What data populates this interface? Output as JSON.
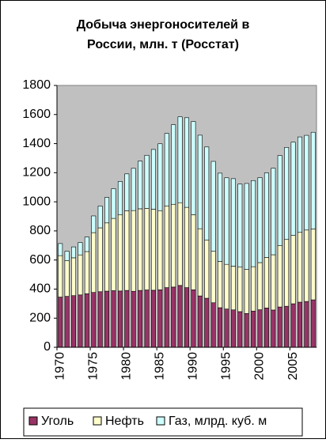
{
  "chart_data": {
    "type": "stacked_bar",
    "title": [
      "Добыча энергоносителей в",
      "России, млн. т (Росстат)"
    ],
    "categories": [
      "1970",
      null,
      null,
      null,
      null,
      "1975",
      null,
      null,
      null,
      null,
      "1980",
      null,
      null,
      null,
      null,
      "1985",
      null,
      null,
      null,
      null,
      "1990",
      null,
      null,
      null,
      null,
      "1995",
      null,
      null,
      null,
      null,
      "2000",
      null,
      null,
      null,
      null,
      "2005",
      null,
      null,
      null
    ],
    "series": [
      {
        "name": "Уголь",
        "color": "#993366",
        "values": [
          345,
          350,
          355,
          360,
          368,
          377,
          382,
          386,
          389,
          387,
          391,
          385,
          391,
          394,
          392,
          395,
          410,
          414,
          425,
          410,
          395,
          353,
          337,
          306,
          272,
          263,
          257,
          245,
          232,
          249,
          258,
          270,
          256,
          277,
          282,
          299,
          310,
          315,
          326
        ]
      },
      {
        "name": "Нефть",
        "color": "#ffffcc",
        "values": [
          285,
          245,
          260,
          275,
          290,
          411,
          439,
          469,
          497,
          523,
          547,
          555,
          561,
          561,
          557,
          542,
          562,
          569,
          569,
          552,
          516,
          462,
          399,
          354,
          318,
          307,
          301,
          306,
          303,
          305,
          324,
          348,
          380,
          421,
          459,
          470,
          480,
          491,
          488
        ]
      },
      {
        "name": "Газ, млрд. куб. м",
        "color": "#ccffff",
        "values": [
          83,
          65,
          75,
          85,
          100,
          115,
          150,
          175,
          204,
          230,
          254,
          290,
          328,
          365,
          411,
          462,
          498,
          547,
          590,
          616,
          641,
          643,
          641,
          618,
          607,
          595,
          601,
          571,
          591,
          592,
          584,
          581,
          595,
          620,
          633,
          641,
          656,
          651,
          664
        ]
      }
    ],
    "ylim": [
      0,
      1800
    ],
    "yticks": [
      0,
      200,
      400,
      600,
      800,
      1000,
      1200,
      1400,
      1600,
      1800
    ],
    "plot_background": "#c0c0c0"
  }
}
